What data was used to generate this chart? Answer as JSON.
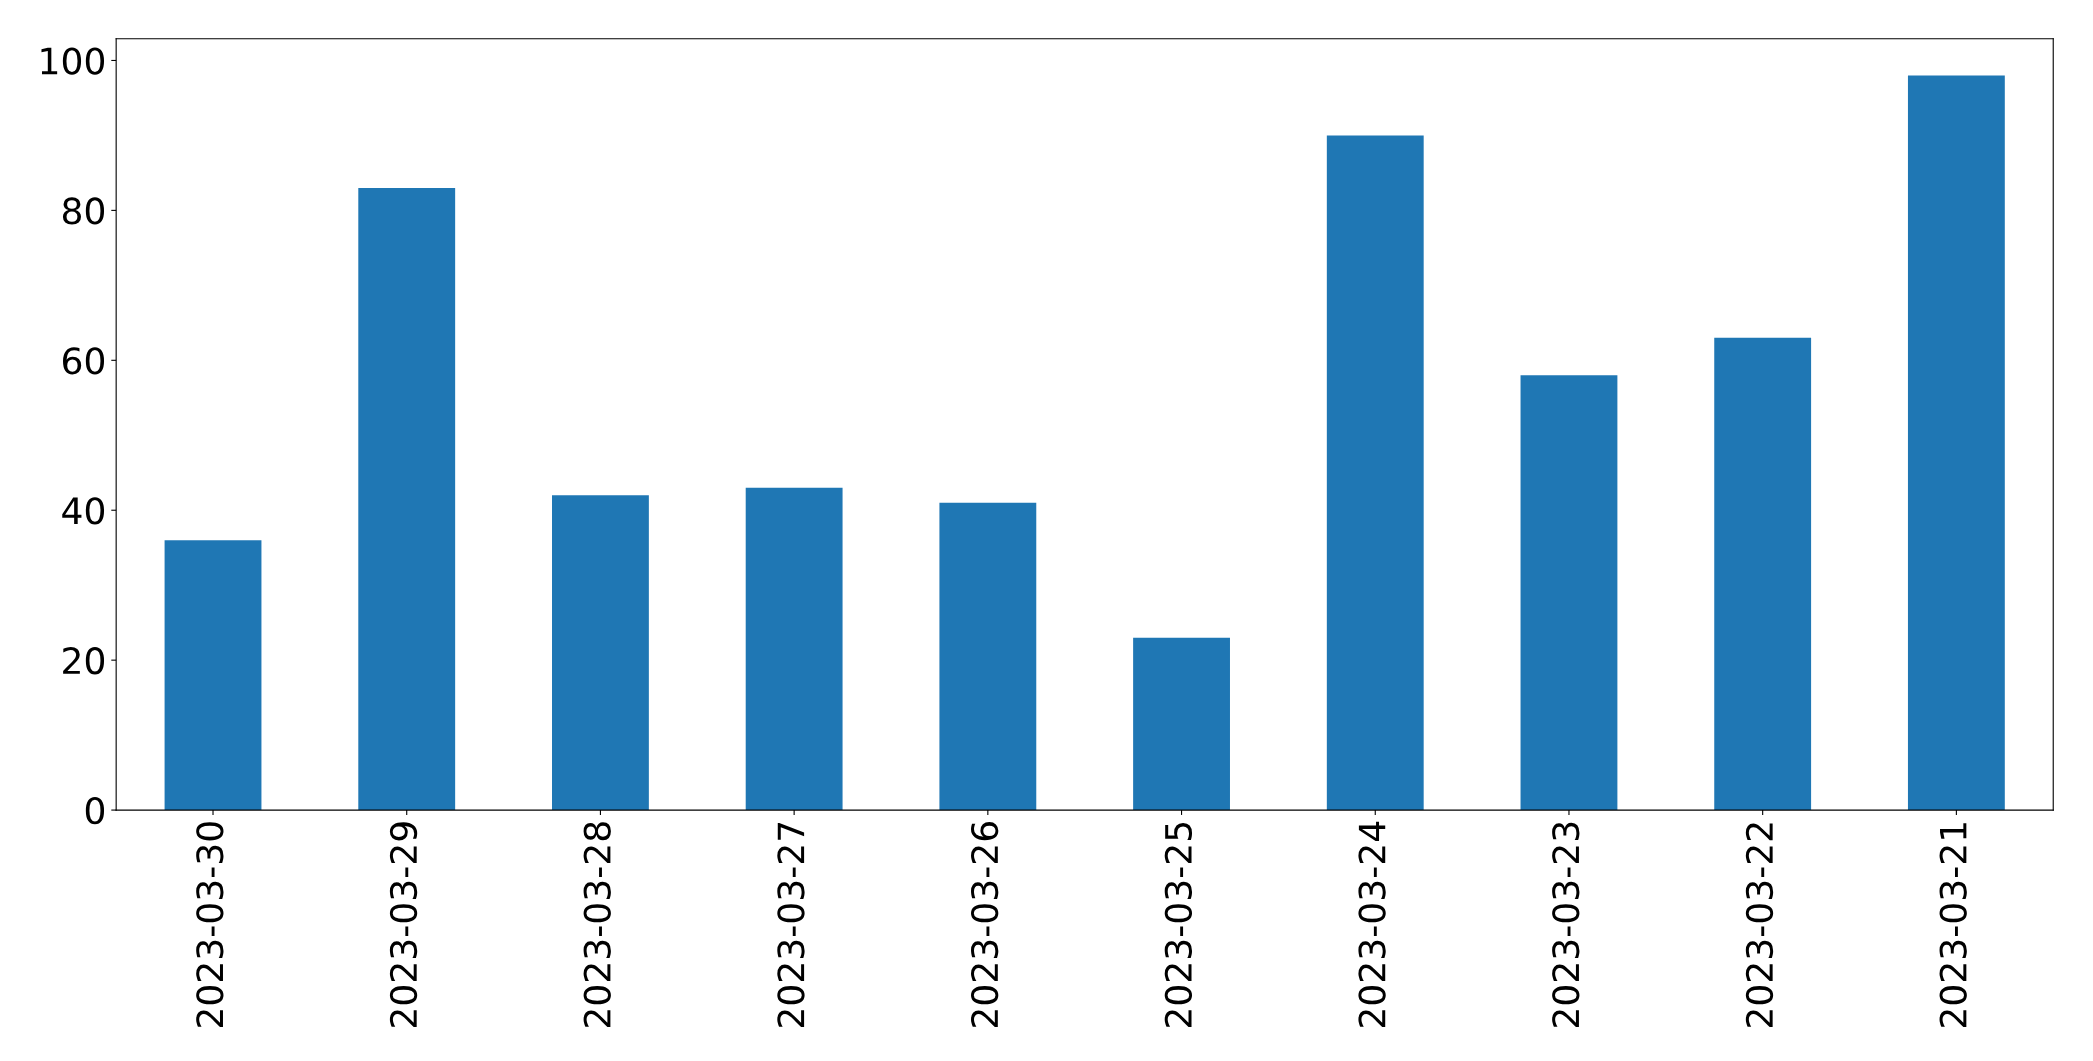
{
  "chart_data": {
    "type": "bar",
    "categories": [
      "2023-03-30",
      "2023-03-29",
      "2023-03-28",
      "2023-03-27",
      "2023-03-26",
      "2023-03-25",
      "2023-03-24",
      "2023-03-23",
      "2023-03-22",
      "2023-03-21"
    ],
    "values": [
      36,
      83,
      42,
      43,
      41,
      23,
      90,
      58,
      63,
      98
    ],
    "color": "#1f77b4",
    "ylim": [
      0,
      102.9
    ],
    "yticks": [
      0,
      20,
      40,
      60,
      80,
      100
    ],
    "grid": false,
    "legend": false
  }
}
